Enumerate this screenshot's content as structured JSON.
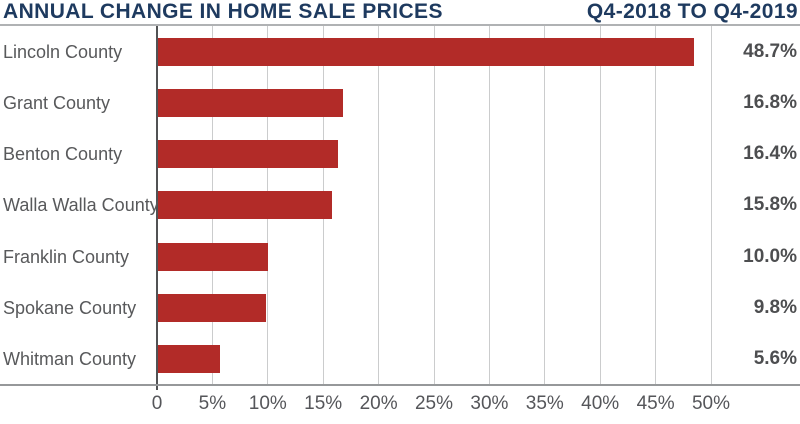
{
  "header": {
    "title": "ANNUAL CHANGE IN HOME SALE PRICES",
    "subtitle": "Q4-2018 TO Q4-2019"
  },
  "chart_data": {
    "type": "bar",
    "orientation": "horizontal",
    "title": "ANNUAL CHANGE IN HOME SALE PRICES",
    "subtitle": "Q4-2018 TO Q4-2019",
    "categories": [
      "Lincoln County",
      "Grant County",
      "Benton County",
      "Walla Walla County",
      "Franklin County",
      "Spokane County",
      "Whitman County"
    ],
    "values": [
      48.7,
      16.8,
      16.4,
      15.8,
      10.0,
      9.8,
      5.6
    ],
    "value_labels": [
      "48.7%",
      "16.8%",
      "16.4%",
      "15.8%",
      "10.0%",
      "9.8%",
      "5.6%"
    ],
    "x_ticks": [
      "0",
      "5%",
      "10%",
      "15%",
      "20%",
      "25%",
      "30%",
      "35%",
      "40%",
      "45%",
      "50%"
    ],
    "xlim": [
      0,
      50
    ],
    "tick_step": 5,
    "grid": true,
    "legend": "none",
    "value_label_position": "right-margin"
  },
  "colors": {
    "bar": "#B22B28",
    "title": "#1E3A5F",
    "grid": "#CBCCCD",
    "axis": "#96989A",
    "zero_axis": "#515254",
    "category_text": "#58595B",
    "value_text": "#4D4E50",
    "tick_text": "#55565A",
    "header_rule": "#B0B2B4"
  }
}
